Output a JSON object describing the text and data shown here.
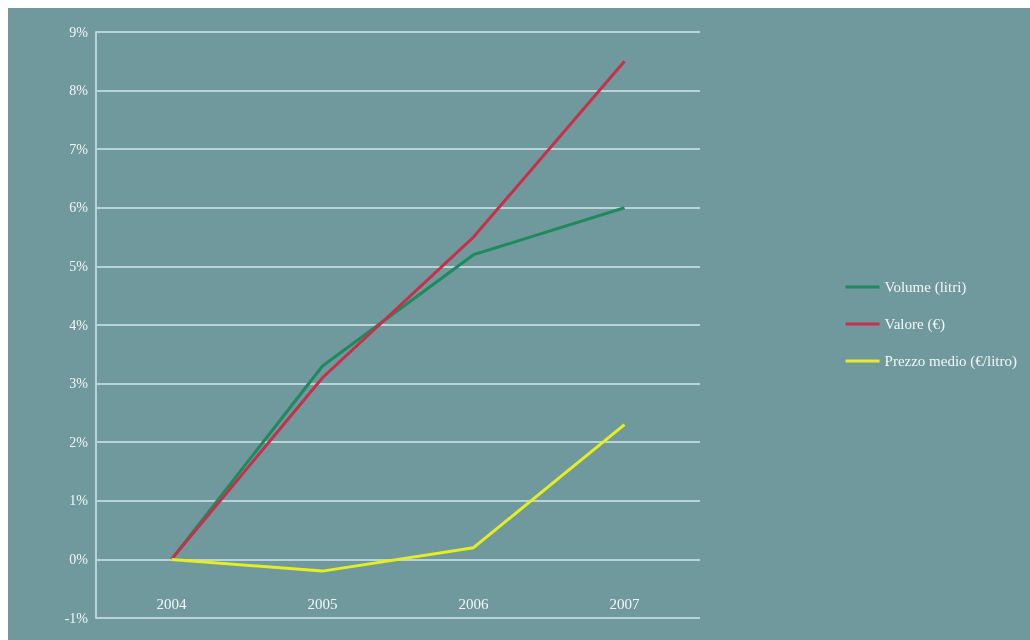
{
  "chart_data": {
    "type": "line",
    "categories": [
      "2004",
      "2005",
      "2006",
      "2007"
    ],
    "series": [
      {
        "name": "Volume (litri)",
        "color": "#1e8a5e",
        "values": [
          0,
          3.3,
          5.2,
          6.0
        ]
      },
      {
        "name": "Valore (€)",
        "color": "#c8304a",
        "values": [
          0,
          3.1,
          5.5,
          8.5
        ]
      },
      {
        "name": "Prezzo medio (€/litro)",
        "color": "#e4ee22",
        "values": [
          0,
          -0.2,
          0.2,
          2.3
        ]
      }
    ],
    "ylim": [
      -1,
      9
    ],
    "yticks": [
      {
        "value": -1,
        "label": "-1%"
      },
      {
        "value": 0,
        "label": "0%"
      },
      {
        "value": 1,
        "label": "1%"
      },
      {
        "value": 2,
        "label": "2%"
      },
      {
        "value": 3,
        "label": "3%"
      },
      {
        "value": 4,
        "label": "4%"
      },
      {
        "value": 5,
        "label": "5%"
      },
      {
        "value": 6,
        "label": "6%"
      },
      {
        "value": 7,
        "label": "7%"
      },
      {
        "value": 8,
        "label": "8%"
      },
      {
        "value": 9,
        "label": "9%"
      }
    ],
    "grid": "y",
    "legend": "right",
    "marker": "none",
    "line_style": "solid"
  }
}
